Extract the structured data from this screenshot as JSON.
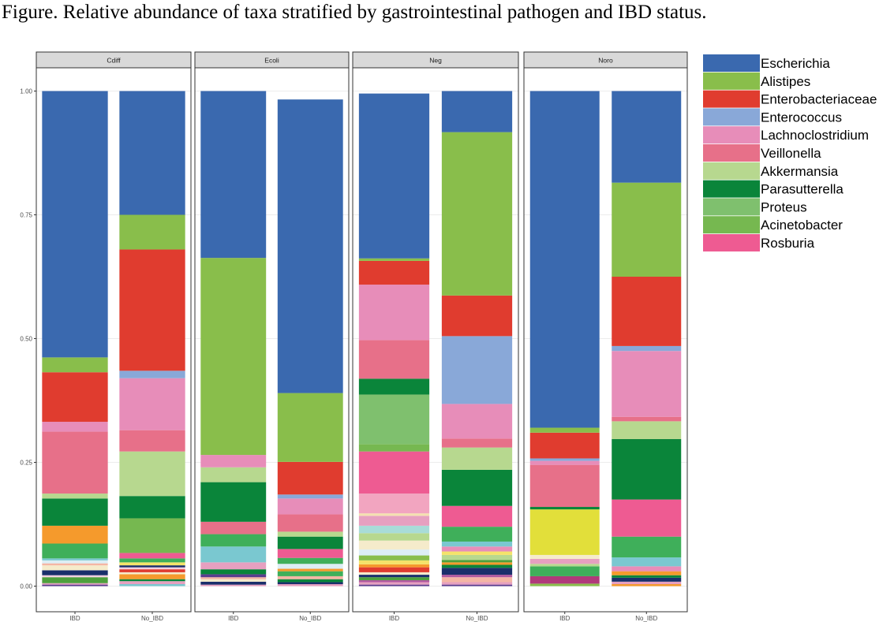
{
  "title": "Figure. Relative abundance of taxa stratified by gastrointestinal pathogen and IBD status.",
  "chart_data": {
    "type": "bar",
    "stacked": true,
    "facets": [
      "Cdiff",
      "Ecoli",
      "Neg",
      "Noro"
    ],
    "categories": [
      "IBD",
      "No_IBD"
    ],
    "category_labels": [
      [
        "IBD",
        "No_IBD"
      ],
      [
        "IBD",
        "No_IBD"
      ],
      [
        "IBD",
        "No_IBD"
      ],
      [
        "IBD",
        "No_IBD"
      ]
    ],
    "y_ticks": [
      {
        "value": 0.0,
        "label": "0.00"
      },
      {
        "value": 0.25,
        "label": "0.25"
      },
      {
        "value": 0.5,
        "label": "0.50"
      },
      {
        "value": 0.75,
        "label": "0.75"
      },
      {
        "value": 1.0,
        "label": "1.00"
      }
    ],
    "ylim": [
      0,
      1
    ],
    "legend_position": "right",
    "grid": true,
    "legend": [
      {
        "name": "Escherichia",
        "color": "#3A69AF"
      },
      {
        "name": "Alistipes",
        "color": "#89BE4B"
      },
      {
        "name": "Enterobacteriaceae",
        "color": "#E03C2F"
      },
      {
        "name": "Enterococcus",
        "color": "#89A8D8"
      },
      {
        "name": "Lachnoclostridium",
        "color": "#E78DB9"
      },
      {
        "name": "Veillonella",
        "color": "#E77089"
      },
      {
        "name": "Akkermansia",
        "color": "#B7D88F"
      },
      {
        "name": "Parasutterella",
        "color": "#0A853A"
      },
      {
        "name": "Proteus",
        "color": "#7FC06E"
      },
      {
        "name": "Acinetobacter",
        "color": "#76B850"
      },
      {
        "name": "Rosburia",
        "color": "#EE5B92"
      }
    ],
    "bars": [
      {
        "facet": "Cdiff",
        "category": "IBD",
        "segments": [
          {
            "value": 0.003,
            "color": "#5A3E8F"
          },
          {
            "value": 0.003,
            "color": "#E6A0C0"
          },
          {
            "value": 0.012,
            "color": "#4EA03C"
          },
          {
            "value": 0.004,
            "color": "#F2D0E0"
          },
          {
            "value": 0.01,
            "color": "#1A2F6B"
          },
          {
            "value": 0.01,
            "color": "#F5EBCB"
          },
          {
            "value": 0.004,
            "color": "#F4B6A4"
          },
          {
            "value": 0.006,
            "color": "#DDEEF5"
          },
          {
            "value": 0.004,
            "color": "#7AC8D0"
          },
          {
            "value": 0.03,
            "color": "#3FAF5A"
          },
          {
            "value": 0.036,
            "color": "#F59A2C"
          },
          {
            "value": 0.055,
            "color": "#0A853A"
          },
          {
            "value": 0.01,
            "color": "#B7D88F"
          },
          {
            "value": 0.125,
            "color": "#E77089"
          },
          {
            "value": 0.02,
            "color": "#E78DB9"
          },
          {
            "value": 0.1,
            "color": "#E03C2F"
          },
          {
            "value": 0.03,
            "color": "#89BE4B"
          },
          {
            "value": 0.538,
            "color": "#3A69AF"
          }
        ]
      },
      {
        "facet": "Cdiff",
        "category": "No_IBD",
        "segments": [
          {
            "value": 0.004,
            "color": "#7AC8D0"
          },
          {
            "value": 0.006,
            "color": "#E6A0C0"
          },
          {
            "value": 0.004,
            "color": "#0A853A"
          },
          {
            "value": 0.01,
            "color": "#F59A2C"
          },
          {
            "value": 0.004,
            "color": "#F5EBCB"
          },
          {
            "value": 0.006,
            "color": "#E03C2F"
          },
          {
            "value": 0.004,
            "color": "#F2D0E0"
          },
          {
            "value": 0.004,
            "color": "#1A2F6B"
          },
          {
            "value": 0.006,
            "color": "#F4E36A"
          },
          {
            "value": 0.008,
            "color": "#3FAF5A"
          },
          {
            "value": 0.011,
            "color": "#EE5B92"
          },
          {
            "value": 0.07,
            "color": "#76B850"
          },
          {
            "value": 0.045,
            "color": "#0A853A"
          },
          {
            "value": 0.09,
            "color": "#B7D88F"
          },
          {
            "value": 0.043,
            "color": "#E77089"
          },
          {
            "value": 0.105,
            "color": "#E78DB9"
          },
          {
            "value": 0.015,
            "color": "#89A8D8"
          },
          {
            "value": 0.245,
            "color": "#E03C2F"
          },
          {
            "value": 0.07,
            "color": "#89BE4B"
          },
          {
            "value": 0.25,
            "color": "#3A69AF"
          }
        ]
      },
      {
        "facet": "Ecoli",
        "category": "IBD",
        "segments": [
          {
            "value": 0.003,
            "color": "#E6A0C0"
          },
          {
            "value": 0.006,
            "color": "#1A2F6B"
          },
          {
            "value": 0.005,
            "color": "#F5EBCB"
          },
          {
            "value": 0.004,
            "color": "#F4B6A4"
          },
          {
            "value": 0.006,
            "color": "#5A3E8F"
          },
          {
            "value": 0.01,
            "color": "#0A853A"
          },
          {
            "value": 0.014,
            "color": "#E6A0C0"
          },
          {
            "value": 0.032,
            "color": "#7AC8D0"
          },
          {
            "value": 0.025,
            "color": "#3FAF5A"
          },
          {
            "value": 0.025,
            "color": "#E77089"
          },
          {
            "value": 0.08,
            "color": "#0A853A"
          },
          {
            "value": 0.03,
            "color": "#B7D88F"
          },
          {
            "value": 0.025,
            "color": "#E78DB9"
          },
          {
            "value": 0.398,
            "color": "#89BE4B"
          },
          {
            "value": 0.337,
            "color": "#3A69AF"
          }
        ]
      },
      {
        "facet": "Ecoli",
        "category": "No_IBD",
        "segments": [
          {
            "value": 0.004,
            "color": "#E6A0C0"
          },
          {
            "value": 0.004,
            "color": "#1A2F6B"
          },
          {
            "value": 0.006,
            "color": "#0A853A"
          },
          {
            "value": 0.006,
            "color": "#F4B6A4"
          },
          {
            "value": 0.01,
            "color": "#3FAF5A"
          },
          {
            "value": 0.005,
            "color": "#F59A2C"
          },
          {
            "value": 0.01,
            "color": "#DDEEF5"
          },
          {
            "value": 0.012,
            "color": "#3FAF5A"
          },
          {
            "value": 0.018,
            "color": "#EE5B92"
          },
          {
            "value": 0.025,
            "color": "#0A853A"
          },
          {
            "value": 0.01,
            "color": "#B7D88F"
          },
          {
            "value": 0.035,
            "color": "#E77089"
          },
          {
            "value": 0.032,
            "color": "#E78DB9"
          },
          {
            "value": 0.008,
            "color": "#89A8D8"
          },
          {
            "value": 0.066,
            "color": "#E03C2F"
          },
          {
            "value": 0.139,
            "color": "#89BE4B"
          },
          {
            "value": 0.593,
            "color": "#3A69AF"
          }
        ]
      },
      {
        "facet": "Neg",
        "category": "IBD",
        "segments": [
          {
            "value": 0.003,
            "color": "#5A3E8F"
          },
          {
            "value": 0.005,
            "color": "#E6A0C0"
          },
          {
            "value": 0.004,
            "color": "#B05AA0"
          },
          {
            "value": 0.006,
            "color": "#4EA03C"
          },
          {
            "value": 0.005,
            "color": "#1A2F6B"
          },
          {
            "value": 0.005,
            "color": "#F5EBCB"
          },
          {
            "value": 0.01,
            "color": "#E03C2F"
          },
          {
            "value": 0.006,
            "color": "#F59A2C"
          },
          {
            "value": 0.008,
            "color": "#F4E36A"
          },
          {
            "value": 0.01,
            "color": "#89BE4B"
          },
          {
            "value": 0.012,
            "color": "#DDEEF5"
          },
          {
            "value": 0.018,
            "color": "#F5EBCB"
          },
          {
            "value": 0.015,
            "color": "#B7D88F"
          },
          {
            "value": 0.015,
            "color": "#A8DCD8"
          },
          {
            "value": 0.02,
            "color": "#E6A0C0"
          },
          {
            "value": 0.005,
            "color": "#F4E0B0"
          },
          {
            "value": 0.04,
            "color": "#F2A5C0"
          },
          {
            "value": 0.085,
            "color": "#EE5B92"
          },
          {
            "value": 0.015,
            "color": "#76B850"
          },
          {
            "value": 0.1,
            "color": "#7FC06E"
          },
          {
            "value": 0.032,
            "color": "#0A853A"
          },
          {
            "value": 0.078,
            "color": "#E77089"
          },
          {
            "value": 0.112,
            "color": "#E78DB9"
          },
          {
            "value": 0.048,
            "color": "#E03C2F"
          },
          {
            "value": 0.005,
            "color": "#89BE4B"
          },
          {
            "value": 0.333,
            "color": "#3A69AF"
          }
        ]
      },
      {
        "facet": "Neg",
        "category": "No_IBD",
        "segments": [
          {
            "value": 0.003,
            "color": "#5A3E8F"
          },
          {
            "value": 0.005,
            "color": "#E6A0C0"
          },
          {
            "value": 0.01,
            "color": "#F4B6A4"
          },
          {
            "value": 0.005,
            "color": "#B05AA0"
          },
          {
            "value": 0.014,
            "color": "#1A2F6B"
          },
          {
            "value": 0.006,
            "color": "#0A853A"
          },
          {
            "value": 0.005,
            "color": "#F59A2C"
          },
          {
            "value": 0.005,
            "color": "#4EA03C"
          },
          {
            "value": 0.01,
            "color": "#B7D88F"
          },
          {
            "value": 0.007,
            "color": "#F4E36A"
          },
          {
            "value": 0.01,
            "color": "#E78DB9"
          },
          {
            "value": 0.01,
            "color": "#7AC8D0"
          },
          {
            "value": 0.03,
            "color": "#3FAF5A"
          },
          {
            "value": 0.042,
            "color": "#EE5B92"
          },
          {
            "value": 0.073,
            "color": "#0A853A"
          },
          {
            "value": 0.045,
            "color": "#B7D88F"
          },
          {
            "value": 0.018,
            "color": "#E77089"
          },
          {
            "value": 0.07,
            "color": "#E78DB9"
          },
          {
            "value": 0.137,
            "color": "#89A8D8"
          },
          {
            "value": 0.082,
            "color": "#E03C2F"
          },
          {
            "value": 0.33,
            "color": "#89BE4B"
          },
          {
            "value": 0.083,
            "color": "#3A69AF"
          }
        ]
      },
      {
        "facet": "Noro",
        "category": "IBD",
        "segments": [
          {
            "value": 0.005,
            "color": "#89BE4B"
          },
          {
            "value": 0.015,
            "color": "#B03A7A"
          },
          {
            "value": 0.02,
            "color": "#3FAF5A"
          },
          {
            "value": 0.005,
            "color": "#B7D88F"
          },
          {
            "value": 0.01,
            "color": "#E6A0C0"
          },
          {
            "value": 0.008,
            "color": "#F5EBCB"
          },
          {
            "value": 0.092,
            "color": "#E2DF3A"
          },
          {
            "value": 0.005,
            "color": "#0A853A"
          },
          {
            "value": 0.085,
            "color": "#E77089"
          },
          {
            "value": 0.008,
            "color": "#E78DB9"
          },
          {
            "value": 0.005,
            "color": "#89A8D8"
          },
          {
            "value": 0.052,
            "color": "#E03C2F"
          },
          {
            "value": 0.01,
            "color": "#89BE4B"
          },
          {
            "value": 0.68,
            "color": "#3A69AF"
          }
        ]
      },
      {
        "facet": "Noro",
        "category": "No_IBD",
        "segments": [
          {
            "value": 0.004,
            "color": "#F59A2C"
          },
          {
            "value": 0.005,
            "color": "#E6A0C0"
          },
          {
            "value": 0.008,
            "color": "#1A2F6B"
          },
          {
            "value": 0.005,
            "color": "#0A853A"
          },
          {
            "value": 0.008,
            "color": "#F59A2C"
          },
          {
            "value": 0.01,
            "color": "#E78DB9"
          },
          {
            "value": 0.018,
            "color": "#7AC8D0"
          },
          {
            "value": 0.042,
            "color": "#3FAF5A"
          },
          {
            "value": 0.075,
            "color": "#EE5B92"
          },
          {
            "value": 0.122,
            "color": "#0A853A"
          },
          {
            "value": 0.036,
            "color": "#B7D88F"
          },
          {
            "value": 0.009,
            "color": "#E77089"
          },
          {
            "value": 0.133,
            "color": "#E78DB9"
          },
          {
            "value": 0.01,
            "color": "#89A8D8"
          },
          {
            "value": 0.14,
            "color": "#E03C2F"
          },
          {
            "value": 0.19,
            "color": "#89BE4B"
          },
          {
            "value": 0.185,
            "color": "#3A69AF"
          }
        ]
      }
    ]
  }
}
